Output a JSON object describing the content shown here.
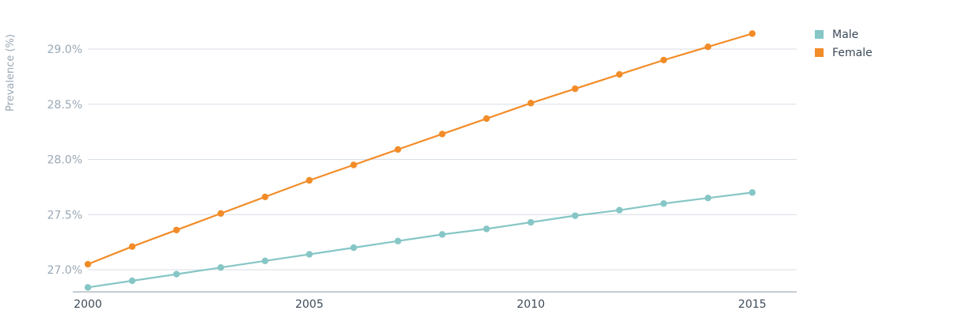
{
  "chart_data": {
    "type": "line",
    "title": "",
    "xlabel": "",
    "ylabel": "Prevalence (%)",
    "x": [
      2000,
      2001,
      2002,
      2003,
      2004,
      2005,
      2006,
      2007,
      2008,
      2009,
      2010,
      2011,
      2012,
      2013,
      2014,
      2015
    ],
    "x_ticks": [
      "2000",
      "2005",
      "2010",
      "2015"
    ],
    "y_ticks": [
      "27.0%",
      "27.5%",
      "28.0%",
      "28.5%",
      "29.0%"
    ],
    "y_tick_values": [
      27.0,
      27.5,
      28.0,
      28.5,
      29.0
    ],
    "xlim": [
      2000,
      2016
    ],
    "ylim": [
      26.8,
      29.3
    ],
    "grid": true,
    "legend_position": "top-right",
    "series": [
      {
        "name": "Male",
        "color": "#86c6c6",
        "values": [
          26.84,
          26.9,
          26.96,
          27.02,
          27.08,
          27.14,
          27.2,
          27.26,
          27.32,
          27.37,
          27.43,
          27.49,
          27.54,
          27.6,
          27.65,
          27.7
        ]
      },
      {
        "name": "Female",
        "color": "#f28c28",
        "values": [
          27.05,
          27.21,
          27.36,
          27.51,
          27.66,
          27.81,
          27.95,
          28.09,
          28.23,
          28.37,
          28.51,
          28.64,
          28.77,
          28.9,
          29.02,
          29.14
        ]
      }
    ]
  }
}
